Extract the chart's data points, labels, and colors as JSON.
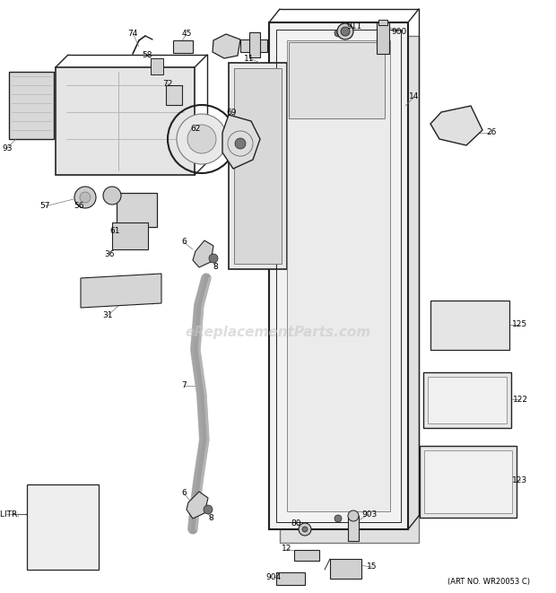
{
  "bg_color": "#ffffff",
  "watermark": "eReplacementParts.com",
  "art_no": "(ART NO. WR20053 C)",
  "fig_width": 6.2,
  "fig_height": 6.61,
  "dpi": 100
}
